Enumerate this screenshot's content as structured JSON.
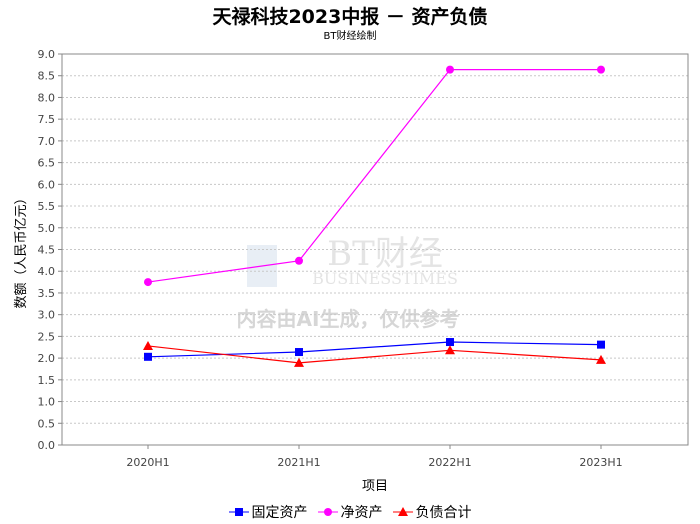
{
  "chart_data": {
    "type": "line",
    "title": "天禄科技2023中报 － 资产负债",
    "subtitle": "BT财经绘制",
    "xlabel": "项目",
    "ylabel": "数额（人民币亿元）",
    "categories": [
      "2020H1",
      "2021H1",
      "2022H1",
      "2023H1"
    ],
    "ylim": [
      0,
      9
    ],
    "yticks": [
      "0.0",
      "0.5",
      "1.0",
      "1.5",
      "2.0",
      "2.5",
      "3.0",
      "3.5",
      "4.0",
      "4.5",
      "5.0",
      "5.5",
      "6.0",
      "6.5",
      "7.0",
      "7.5",
      "8.0",
      "8.5",
      "9.0"
    ],
    "grid": true,
    "legend_position": "bottom",
    "series": [
      {
        "name": "固定资产",
        "color": "#0000ff",
        "marker": "square",
        "values": [
          2.03,
          2.14,
          2.37,
          2.31
        ]
      },
      {
        "name": "净资产",
        "color": "#ff00ff",
        "marker": "circle",
        "values": [
          3.75,
          4.24,
          8.64,
          8.64
        ]
      },
      {
        "name": "负债合计",
        "color": "#ff0000",
        "marker": "triangle",
        "values": [
          2.28,
          1.89,
          2.18,
          1.96
        ]
      }
    ]
  },
  "watermark": {
    "logo": "BT财经 BUSINESSTIMES",
    "notice": "内容由AI生成，仅供参考"
  }
}
